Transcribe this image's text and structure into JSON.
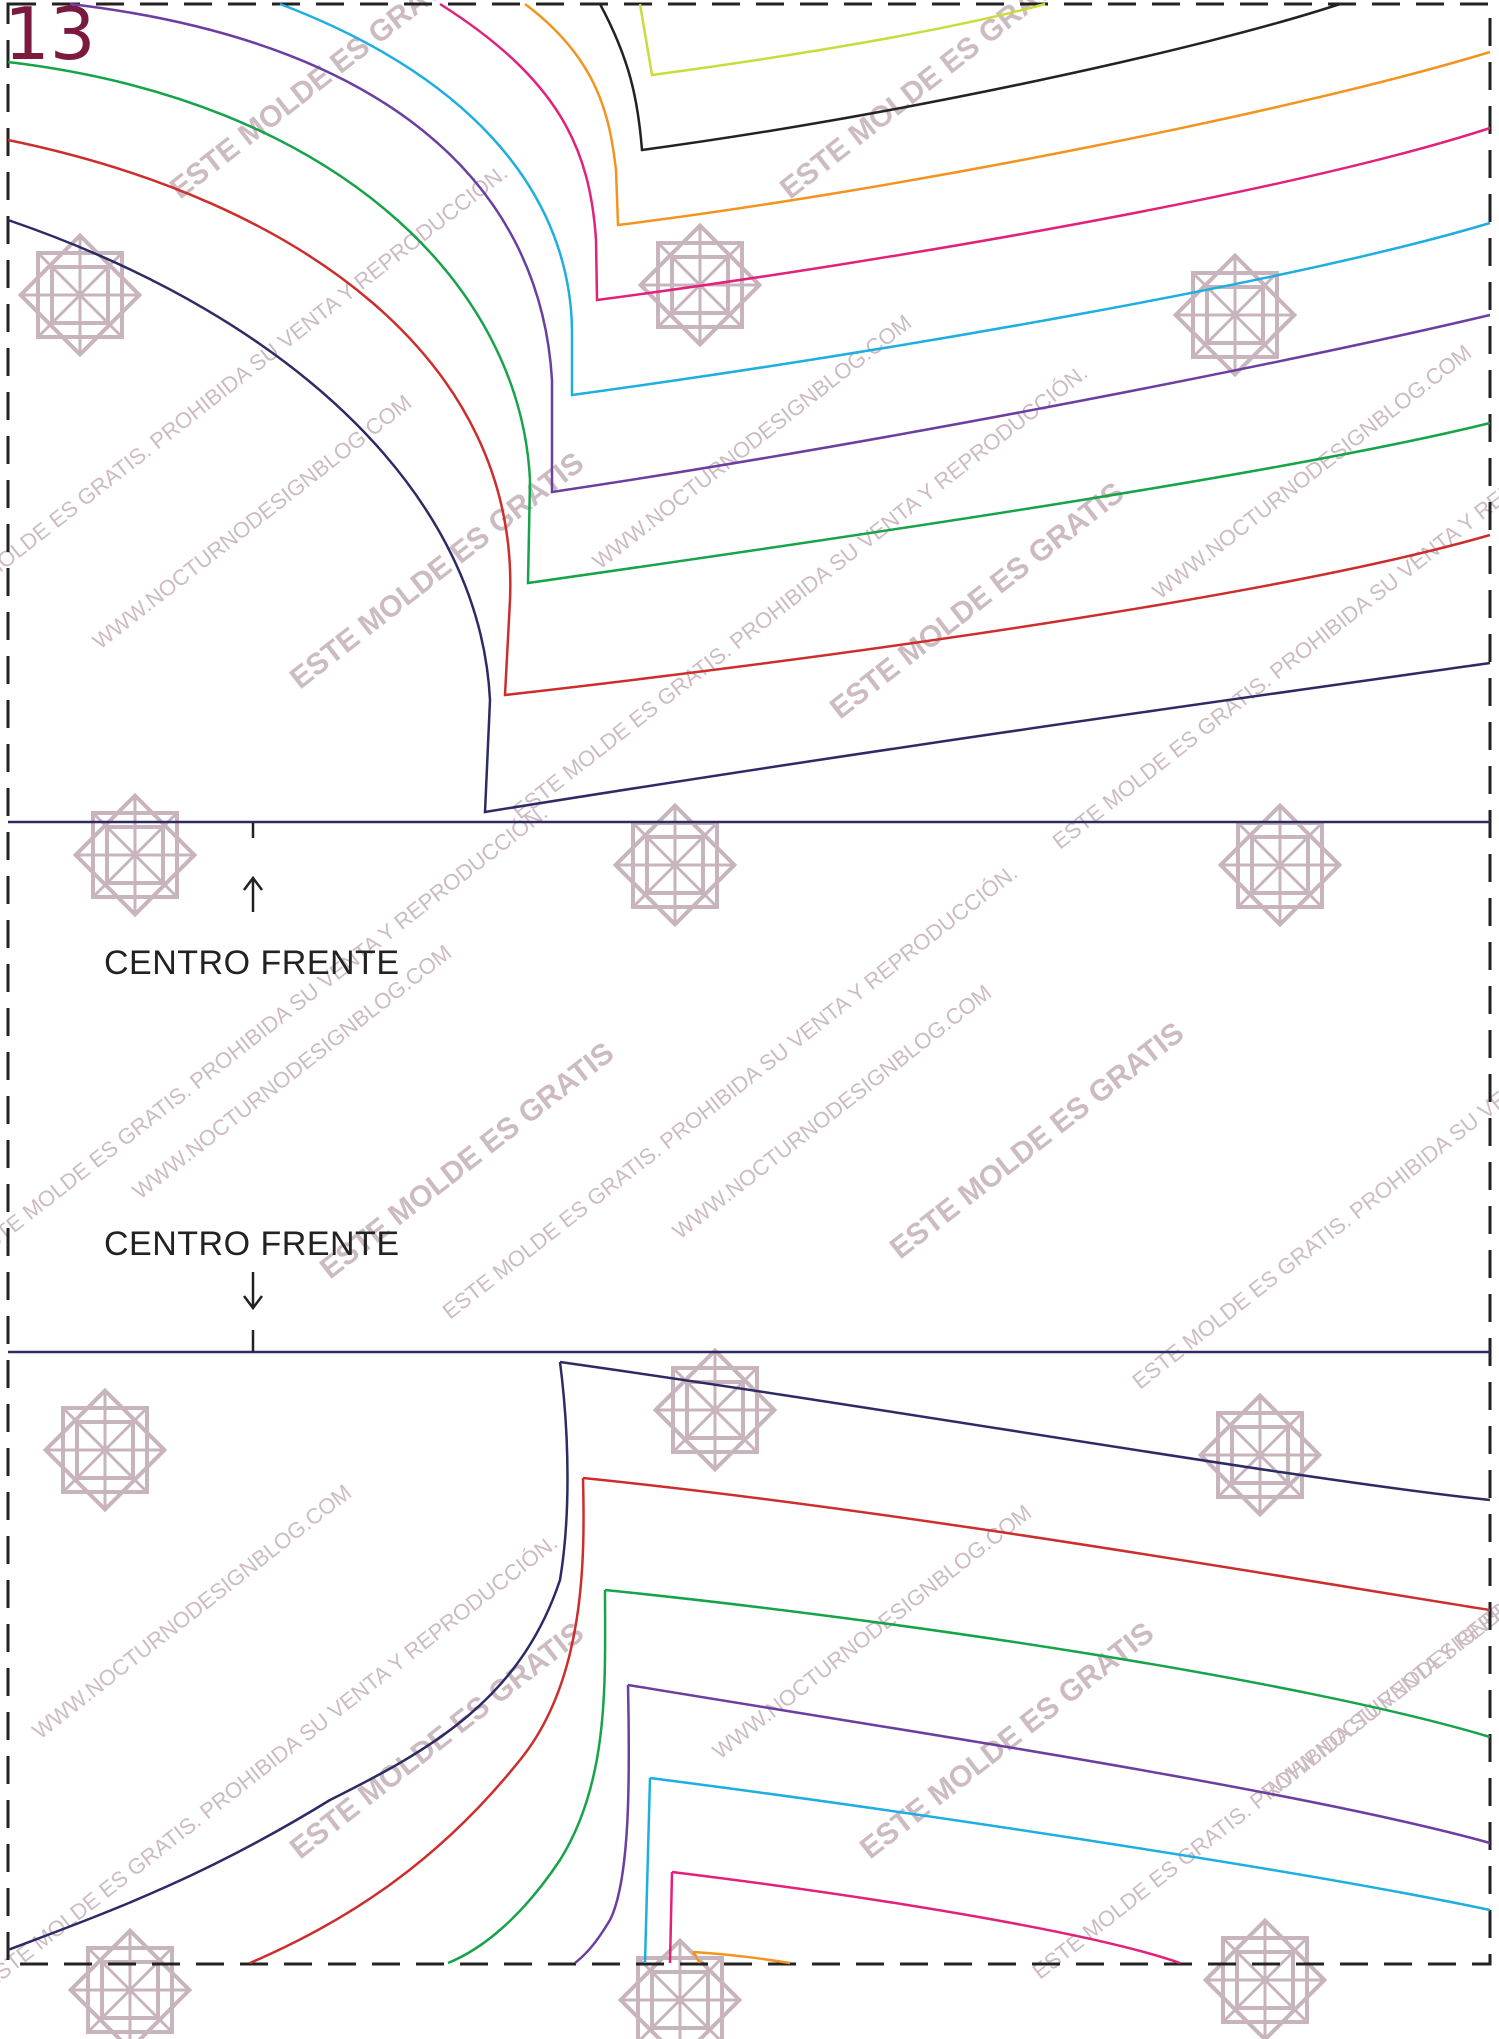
{
  "page": {
    "number": "13"
  },
  "labels": {
    "centro_frente_top": "CENTRO FRENTE",
    "centro_frente_bottom": "CENTRO FRENTE"
  },
  "watermark": {
    "line1": "ESTE MOLDE ES GRATIS",
    "line2": "WWW.NOCTURNODESIGNBLOG.COM",
    "line3": "ESTE MOLDE ES GRATIS. PROHIBIDA SU VENTA Y REPRODUCCIÓN.",
    "color": "#c8b4bc"
  },
  "colors": {
    "navy": "#2e2a66",
    "red": "#cc2e2e",
    "green": "#16a34a",
    "purple": "#6b3fa0",
    "cyan": "#1eaee0",
    "magenta": "#e2217a",
    "orange": "#f2941f",
    "black": "#222222",
    "lime": "#c9dc3c",
    "page_number": "#7b1a3e"
  }
}
